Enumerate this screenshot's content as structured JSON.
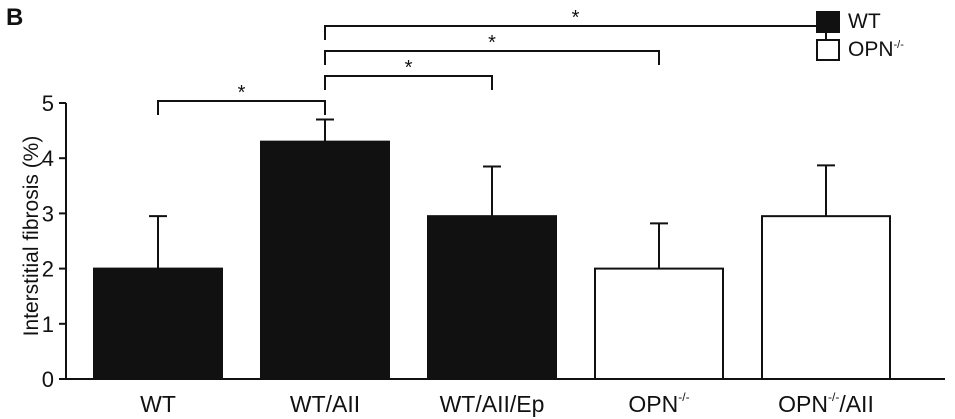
{
  "panel_label": "B",
  "colors": {
    "wt": "#111111",
    "opn": "#ffffff",
    "stroke": "#111111"
  },
  "legend": [
    {
      "base": "WT",
      "sup": "",
      "fill": "#111111"
    },
    {
      "base": "OPN",
      "sup": "-/-",
      "fill": "#ffffff"
    }
  ],
  "chart_data": {
    "type": "bar",
    "title": "",
    "xlabel": "",
    "ylabel": "Interstitial fibrosis (%)",
    "ylim": [
      0,
      5
    ],
    "yticks": [
      0,
      1,
      2,
      3,
      4,
      5
    ],
    "categories": [
      {
        "base": "WT",
        "sup": "",
        "suffix": ""
      },
      {
        "base": "WT/AII",
        "sup": "",
        "suffix": ""
      },
      {
        "base": "WT/AII/Ep",
        "sup": "",
        "suffix": ""
      },
      {
        "base": "OPN",
        "sup": "-/-",
        "suffix": ""
      },
      {
        "base": "OPN",
        "sup": "-/-",
        "suffix": "/AII"
      }
    ],
    "values": [
      2.0,
      4.3,
      2.95,
      2.0,
      2.95
    ],
    "errors": [
      0.95,
      0.4,
      0.9,
      0.82,
      0.92
    ],
    "groups": [
      "WT",
      "WT",
      "WT",
      "OPN-/-",
      "OPN-/-"
    ],
    "grid": false,
    "legend_position": "top-right",
    "significance": [
      {
        "from": 0,
        "to": 1,
        "label": "*"
      },
      {
        "from": 1,
        "to": 2,
        "label": "*"
      },
      {
        "from": 1,
        "to": 3,
        "label": "*"
      },
      {
        "from": 1,
        "to": 4,
        "label": "*"
      }
    ]
  }
}
